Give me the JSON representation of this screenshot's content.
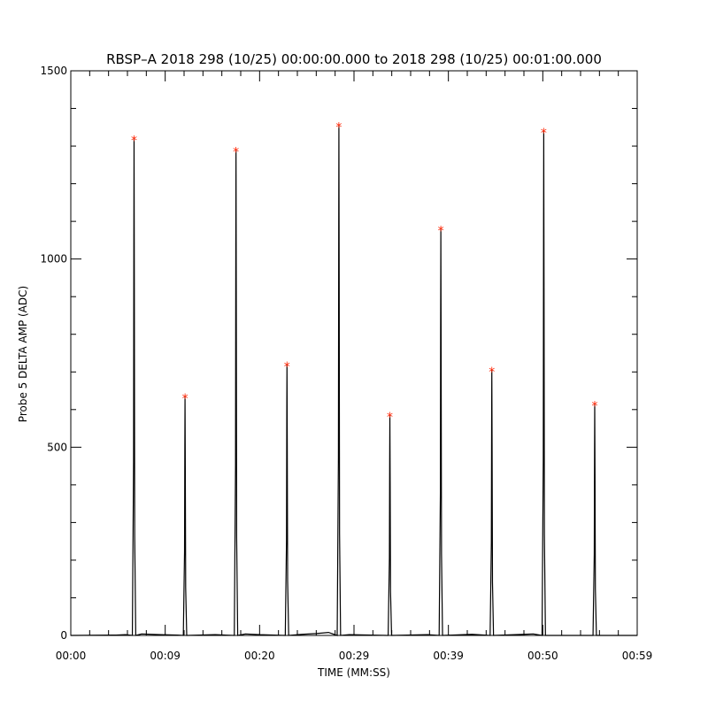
{
  "chart_data": {
    "type": "line",
    "title": "RBSP–A 2018 298 (10/25) 00:00:00.000 to 2018 298 (10/25) 00:01:00.000",
    "xlabel": "TIME (MM:SS)",
    "ylabel": "Probe 5 DELTA AMP (ADC)",
    "xlim": [
      0,
      60
    ],
    "ylim": [
      0,
      1500
    ],
    "x_ticks": [
      {
        "value": 0,
        "label": "00:00"
      },
      {
        "value": 10,
        "label": "00:09"
      },
      {
        "value": 20,
        "label": "00:20"
      },
      {
        "value": 30,
        "label": "00:29"
      },
      {
        "value": 40,
        "label": "00:39"
      },
      {
        "value": 50,
        "label": "00:50"
      },
      {
        "value": 60,
        "label": "00:59"
      }
    ],
    "y_ticks": [
      {
        "value": 0,
        "label": "0"
      },
      {
        "value": 500,
        "label": "500"
      },
      {
        "value": 1000,
        "label": "1000"
      },
      {
        "value": 1500,
        "label": "1500"
      }
    ],
    "grid": false,
    "series": [
      {
        "color": "#000000",
        "peaks": [
          {
            "x": 6.7,
            "y": 1320
          },
          {
            "x": 12.1,
            "y": 635
          },
          {
            "x": 17.5,
            "y": 1290
          },
          {
            "x": 22.9,
            "y": 720
          },
          {
            "x": 28.4,
            "y": 1355
          },
          {
            "x": 33.8,
            "y": 585
          },
          {
            "x": 39.2,
            "y": 1080
          },
          {
            "x": 44.6,
            "y": 705
          },
          {
            "x": 50.1,
            "y": 1340
          },
          {
            "x": 55.5,
            "y": 615
          }
        ],
        "baseline": [
          {
            "x": 0,
            "y": 0
          },
          {
            "x": 4.8,
            "y": 1
          },
          {
            "x": 5.8,
            "y": 2
          },
          {
            "x": 7.5,
            "y": 4
          },
          {
            "x": 9.5,
            "y": 2
          },
          {
            "x": 11.3,
            "y": 1
          },
          {
            "x": 15.3,
            "y": 2
          },
          {
            "x": 18.5,
            "y": 4
          },
          {
            "x": 20.0,
            "y": 2
          },
          {
            "x": 24.5,
            "y": 3
          },
          {
            "x": 26.0,
            "y": 5
          },
          {
            "x": 27.3,
            "y": 8
          },
          {
            "x": 29.5,
            "y": 2
          },
          {
            "x": 37.8,
            "y": 2
          },
          {
            "x": 42.5,
            "y": 3
          },
          {
            "x": 48.0,
            "y": 3
          },
          {
            "x": 49.0,
            "y": 4
          },
          {
            "x": 56.5,
            "y": 0
          },
          {
            "x": 60,
            "y": 0
          }
        ]
      }
    ],
    "peak_marker": {
      "symbol": "*",
      "color": "#ff2200"
    }
  }
}
